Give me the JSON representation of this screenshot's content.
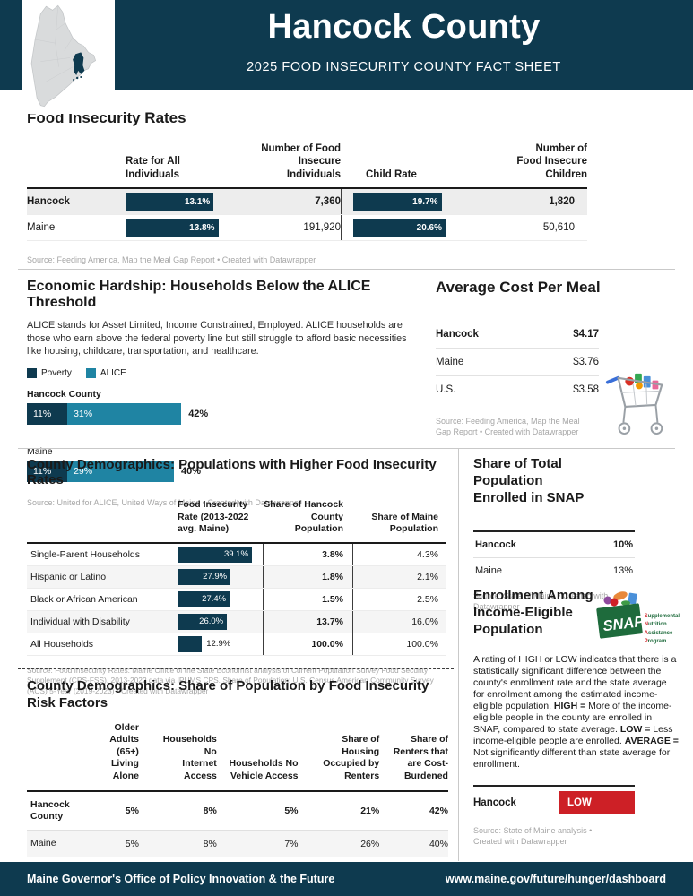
{
  "header": {
    "title": "Hancock County",
    "subtitle": "2025 FOOD INSECURITY COUNTY FACT SHEET"
  },
  "colors": {
    "navy": "#0e3a4f",
    "teal": "#1f84a3",
    "red": "#cd2026"
  },
  "rates": {
    "title": "Food Insecurity Rates",
    "headers": {
      "rate": "Rate for All\nIndividuals",
      "individuals": "Number of Food\nInsecure\nIndividuals",
      "child_rate": "Child Rate",
      "children": "Number of\nFood Insecure\nChildren"
    },
    "rows": [
      {
        "name": "Hancock",
        "rate": "13.1%",
        "individuals": "7,360",
        "child_rate": "19.7%",
        "children": "1,820"
      },
      {
        "name": "Maine",
        "rate": "13.8%",
        "individuals": "191,920",
        "child_rate": "20.6%",
        "children": "50,610"
      }
    ],
    "source": "Source: Feeding America, Map the Meal Gap Report • Created with Datawrapper"
  },
  "alice": {
    "title": "Economic Hardship: Households Below the ALICE Threshold",
    "description": "ALICE stands for Asset Limited, Income Constrained, Employed. ALICE households are those who earn above the federal poverty line but still struggle to afford basic necessities like housing, childcare, transportation, and healthcare.",
    "legend": [
      {
        "label": "Poverty",
        "color": "#0e3a4f"
      },
      {
        "label": "ALICE",
        "color": "#1f84a3"
      }
    ],
    "chart_data": {
      "type": "bar",
      "categories": [
        "Hancock County",
        "Maine"
      ],
      "series": [
        {
          "name": "Poverty",
          "values": [
            11,
            11
          ]
        },
        {
          "name": "ALICE",
          "values": [
            31,
            29
          ]
        }
      ],
      "totals": [
        42,
        40
      ]
    },
    "bars": [
      {
        "name": "Hancock County",
        "poverty": "11%",
        "alice": "31%",
        "total": "42%"
      },
      {
        "name": "Maine",
        "poverty": "11%",
        "alice": "29%",
        "total": "40%"
      }
    ],
    "source": "Source: United for ALICE, United Ways of Maine • Created with Datawrapper"
  },
  "meal_cost": {
    "title": "Average Cost Per Meal",
    "rows": [
      {
        "name": "Hancock",
        "value": "$4.17"
      },
      {
        "name": "Maine",
        "value": "$3.76"
      },
      {
        "name": "U.S.",
        "value": "$3.58"
      }
    ],
    "source": "Source: Feeding America, Map the Meal Gap Report • Created with Datawrapper"
  },
  "demographics": {
    "title": "County Demographics: Populations with Higher Food Insecurity Rates",
    "headers": {
      "rate": "Food Insecurity\nRate (2013-2022\navg. Maine)",
      "hancock": "Share of Hancock\nCounty\nPopulation",
      "maine": "Share of Maine\nPopulation"
    },
    "rows": [
      {
        "name": "Single-Parent Households",
        "rate": "39.1%",
        "hancock": "3.8%",
        "maine": "4.3%"
      },
      {
        "name": "Hispanic or Latino",
        "rate": "27.9%",
        "hancock": "1.8%",
        "maine": "2.1%"
      },
      {
        "name": "Black or African American",
        "rate": "27.4%",
        "hancock": "1.5%",
        "maine": "2.5%"
      },
      {
        "name": "Individual with Disability",
        "rate": "26.0%",
        "hancock": "13.7%",
        "maine": "16.0%"
      },
      {
        "name": "All Households",
        "rate": "12.9%",
        "hancock": "100.0%",
        "maine": "100.0%"
      }
    ],
    "source": "Source: Food Insecurity Rates: Maine Office of the State Economist analysis of Current Population Survey Food Security Supplement (CPS-FSS), 2013-2022 data via IPUMS CPS. Share of Population: U.S. Census American Community Survey (ACS) 5-Year (2019-2023) • Created with Datawrapper"
  },
  "risk_factors": {
    "title": "County Demographics: Share of Population by Food Insecurity Risk Factors",
    "headers": [
      "Older\nAdults\n(65+)\nLiving\nAlone",
      "Households No\nInternet\nAccess",
      "Households No\nVehicle Access",
      "Share of\nHousing\nOccupied by\nRenters",
      "Share of\nRenters that\nare Cost-\nBurdened"
    ],
    "rows": [
      {
        "name": "Hancock\nCounty",
        "v1": "5%",
        "v2": "8%",
        "v3": "5%",
        "v4": "21%",
        "v5": "42%"
      },
      {
        "name": "Maine",
        "v1": "5%",
        "v2": "8%",
        "v3": "7%",
        "v4": "26%",
        "v5": "40%"
      }
    ],
    "source": "Source: U.S. Census American Community Survey (ACS) 5-Year (2019-2023) • Created with Datawrapper"
  },
  "snap_share": {
    "title": "Share of Total Population\nEnrolled in SNAP",
    "rows": [
      {
        "name": "Hancock",
        "value": "10%"
      },
      {
        "name": "Maine",
        "value": "13%"
      }
    ],
    "source": "Source: State of Maine • Created with Datawrapper"
  },
  "enrollment": {
    "title": "Enrollment Among\nIncome-Eligible\nPopulation",
    "desc1": "A rating of HIGH or LOW indicates that there is a statistically significant difference between the county's enrollment rate and the state average for enrollment among the estimated income-eligible population. ",
    "bold1": "HIGH =",
    "desc2": " More of the income-eligible people in the county are enrolled in SNAP, compared to state average. ",
    "bold2": "LOW =",
    "desc3": " Less income-eligible people are enrolled. ",
    "bold3": "AVERAGE =",
    "desc4": " Not significantly different than state average for enrollment.",
    "county": "Hancock",
    "rating": "LOW",
    "logo": {
      "snap": "SNAP",
      "lines": [
        "Supplemental",
        "Nutrition",
        "Assistance",
        "Program"
      ]
    },
    "source": "Source: State of Maine analysis • Created with Datawrapper"
  },
  "footer": {
    "left": "Maine Governor's Office of Policy Innovation & the Future",
    "right": "www.maine.gov/future/hunger/dashboard"
  }
}
